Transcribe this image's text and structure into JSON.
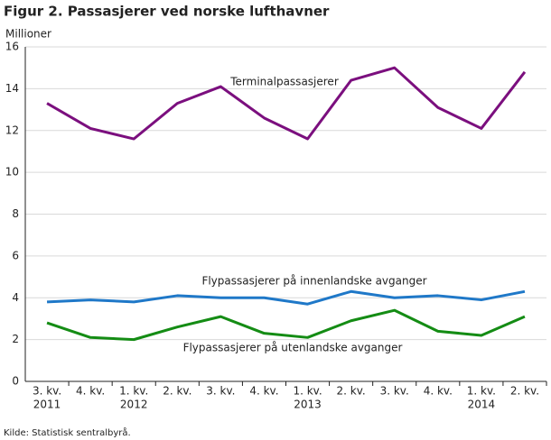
{
  "chart_data": {
    "type": "line",
    "title": "Figur 2. Passasjerer ved norske lufthavner",
    "y_label": "Millioner",
    "source": "Kilde: Statistisk sentralbyrå.",
    "categories": [
      "3. kv.",
      "4. kv.",
      "1. kv.",
      "2. kv.",
      "3. kv.",
      "4. kv.",
      "1. kv.",
      "2. kv.",
      "3. kv.",
      "4. kv.",
      "1. kv.",
      "2. kv."
    ],
    "years": [
      "2011",
      null,
      "2012",
      null,
      null,
      null,
      "2013",
      null,
      null,
      null,
      "2014",
      null
    ],
    "series": [
      {
        "name": "Terminalpassasjerer",
        "color": "#7b0f7e",
        "values": [
          13.3,
          12.1,
          11.6,
          13.3,
          14.1,
          12.6,
          11.6,
          14.4,
          15.0,
          13.1,
          12.1,
          14.8
        ]
      },
      {
        "name": "Flypassasjerer på innenlandske avganger",
        "color": "#1f78c8",
        "values": [
          3.8,
          3.9,
          3.8,
          4.1,
          4.0,
          4.0,
          3.7,
          4.3,
          4.0,
          4.1,
          3.9,
          4.3
        ]
      },
      {
        "name": "Flypassasjerer på utenlandske avganger",
        "color": "#148c14",
        "values": [
          2.8,
          2.1,
          2.0,
          2.6,
          3.1,
          2.3,
          2.1,
          2.9,
          3.4,
          2.4,
          2.2,
          3.1
        ]
      }
    ],
    "ylim": [
      0,
      16
    ],
    "yticks": [
      0,
      2,
      4,
      6,
      8,
      10,
      12,
      14,
      16
    ],
    "grid": true
  }
}
